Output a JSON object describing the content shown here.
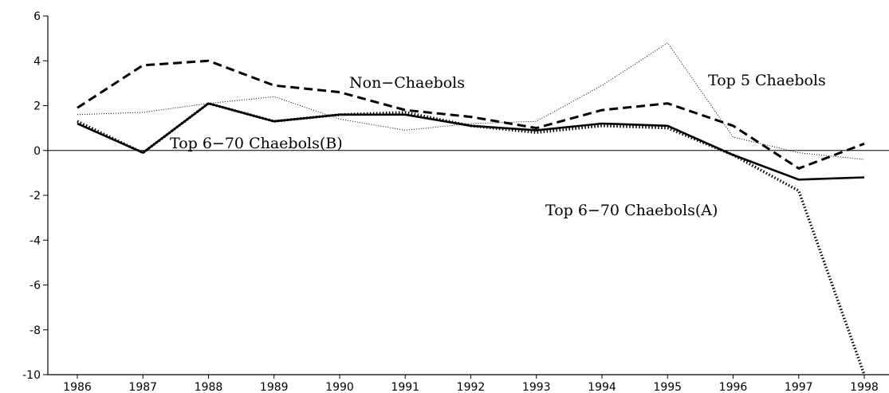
{
  "chart_data": {
    "type": "line",
    "title": "",
    "xlabel": "",
    "ylabel": "",
    "x": [
      "1986",
      "1987",
      "1988",
      "1989",
      "1990",
      "1991",
      "1992",
      "1993",
      "1994",
      "1995",
      "1996",
      "1997",
      "1998"
    ],
    "ylim": [
      -10,
      6
    ],
    "yticks": [
      "-10",
      "-8",
      "-6",
      "-4",
      "-2",
      "0",
      "2",
      "4",
      "6"
    ],
    "grid": false,
    "legend": "none",
    "series": [
      {
        "key": "non_chaebols",
        "name": "Non−Chaebols",
        "style": "dashed",
        "values": [
          1.9,
          3.8,
          4.0,
          2.9,
          2.6,
          1.8,
          1.5,
          1.0,
          1.8,
          2.1,
          1.1,
          -0.8,
          0.3
        ]
      },
      {
        "key": "top5",
        "name": "Top 5 Chaebols",
        "style": "thin-dotted",
        "values": [
          1.6,
          1.7,
          2.1,
          2.4,
          1.4,
          0.9,
          1.2,
          1.3,
          2.9,
          4.8,
          0.6,
          -0.1,
          -0.4
        ]
      },
      {
        "key": "top6_70_b",
        "name": "Top 6−70 Chaebols(B)",
        "style": "solid",
        "values": [
          1.2,
          -0.1,
          2.1,
          1.3,
          1.6,
          1.6,
          1.1,
          0.9,
          1.2,
          1.1,
          -0.2,
          -1.3,
          -1.2
        ]
      },
      {
        "key": "top6_70_a",
        "name": "Top 6−70 Chaebols(A)",
        "style": "heavy-dotted",
        "values": [
          1.3,
          -0.1,
          2.1,
          1.3,
          1.6,
          1.7,
          1.1,
          0.8,
          1.1,
          1.0,
          -0.2,
          -1.8,
          -10.0
        ]
      }
    ]
  }
}
